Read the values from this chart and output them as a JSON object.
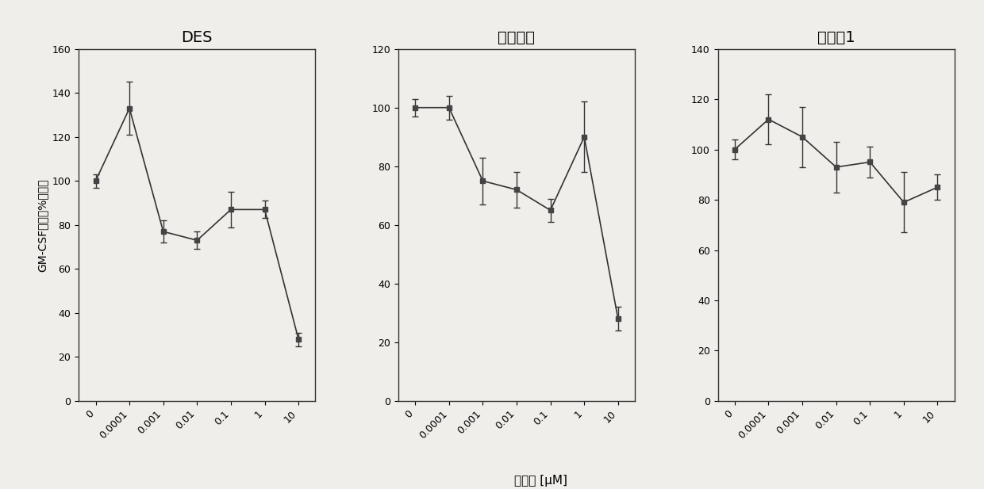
{
  "plots": [
    {
      "title": "DES",
      "x_labels": [
        "0",
        "0.0001",
        "0.001",
        "0.01",
        "0.1",
        "1",
        "10"
      ],
      "y_values": [
        100,
        133,
        77,
        73,
        87,
        87,
        28
      ],
      "y_errors": [
        3,
        12,
        5,
        4,
        8,
        4,
        3
      ],
      "ylim": [
        0,
        160
      ],
      "yticks": [
        0,
        20,
        40,
        60,
        80,
        100,
        120,
        140,
        160
      ]
    },
    {
      "title": "雷洛葡芙",
      "x_labels": [
        "0",
        "0.0001",
        "0.001",
        "0.01",
        "0.1",
        "1",
        "10"
      ],
      "y_values": [
        100,
        100,
        75,
        72,
        65,
        90,
        28
      ],
      "y_errors": [
        3,
        4,
        8,
        6,
        4,
        12,
        4
      ],
      "ylim": [
        0,
        120
      ],
      "yticks": [
        0,
        20,
        40,
        60,
        80,
        100,
        120
      ]
    },
    {
      "title": "化合牶1",
      "x_labels": [
        "0",
        "0.0001",
        "0.001",
        "0.01",
        "0.1",
        "1",
        "10"
      ],
      "y_values": [
        100,
        112,
        105,
        93,
        95,
        79,
        85
      ],
      "y_errors": [
        4,
        10,
        12,
        10,
        6,
        12,
        5
      ],
      "ylim": [
        0,
        140
      ],
      "yticks": [
        0,
        20,
        40,
        60,
        80,
        100,
        120,
        140
      ]
    }
  ],
  "ylabel": "GM-CSF水平（%对照）",
  "xlabel": "化合物 [μM]",
  "line_color": "#333333",
  "marker_color": "#444444",
  "background_color": "#f0eeea",
  "title_fontsize": 14,
  "label_fontsize": 11,
  "tick_fontsize": 9,
  "ylabel_fontsize": 10
}
